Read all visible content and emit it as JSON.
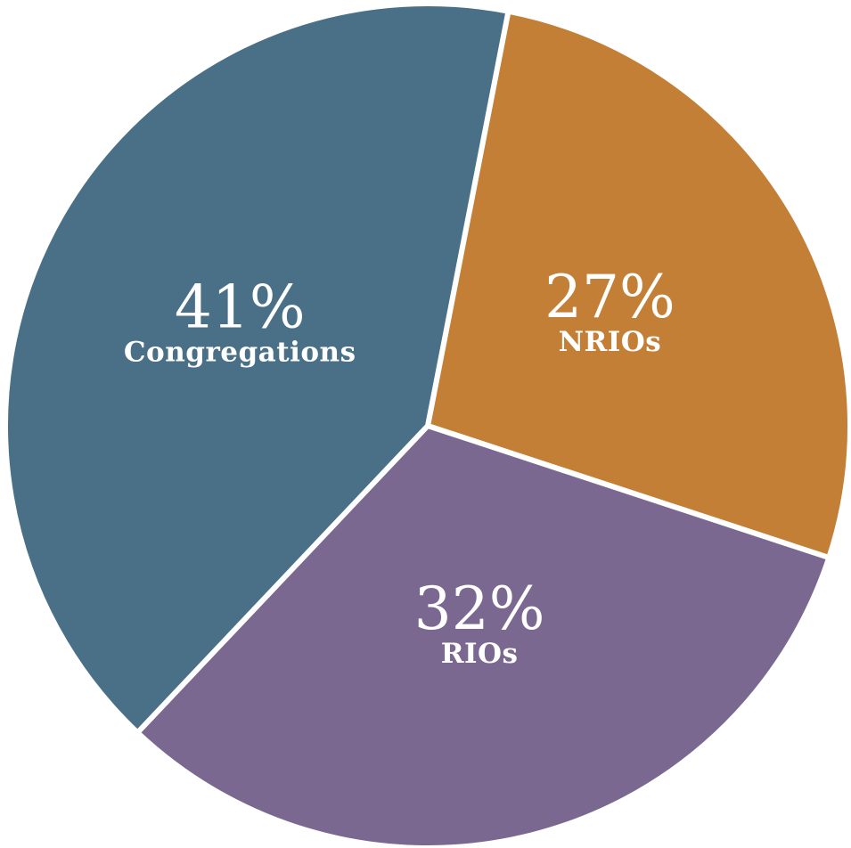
{
  "chart_data": {
    "type": "pie",
    "slices": [
      {
        "label": "NRIOs",
        "value": 27,
        "value_label": "27%",
        "color": "#C47F37"
      },
      {
        "label": "RIOs",
        "value": 32,
        "value_label": "32%",
        "color": "#7A6890"
      },
      {
        "label": "Congregations",
        "value": 41,
        "value_label": "41%",
        "color": "#4A7088"
      }
    ]
  }
}
